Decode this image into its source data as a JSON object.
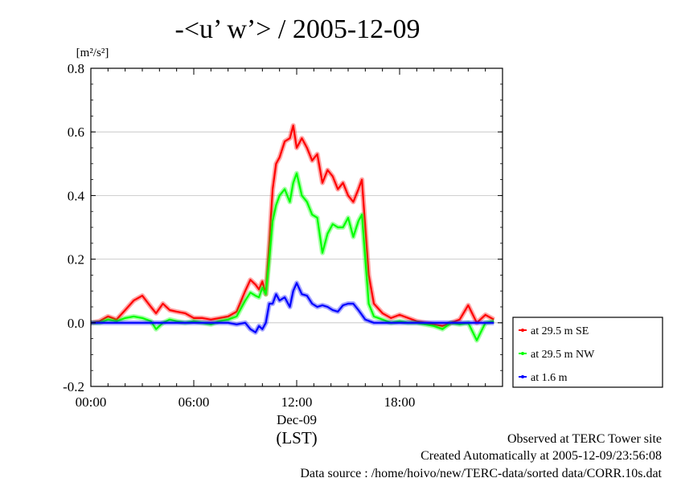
{
  "chart_data": {
    "type": "line",
    "title": "-<u’ w’> / 2005-12-09",
    "ylabel_unit": "[m²/s²]",
    "ylim": [
      -0.2,
      0.8
    ],
    "yticks": [
      -0.2,
      0.0,
      0.2,
      0.4,
      0.6,
      0.8
    ],
    "ytick_labels": [
      "-0.2",
      "0.0",
      "0.2",
      "0.4",
      "0.6",
      "0.8"
    ],
    "xlim": [
      0,
      24
    ],
    "xticks": [
      0,
      6,
      12,
      18
    ],
    "xtick_labels": [
      "00:00",
      "06:00",
      "12:00",
      "18:00"
    ],
    "date_label": "Dec-09",
    "xlabel": "(LST)",
    "grid": "horizontal",
    "legend": "right",
    "series": [
      {
        "name": "at 29.5 m SE",
        "color": "#ff0000",
        "x": [
          0,
          0.5,
          1,
          1.5,
          2,
          2.5,
          3,
          3.5,
          3.8,
          4.2,
          4.6,
          5,
          5.5,
          6,
          6.5,
          7,
          7.5,
          8,
          8.5,
          9,
          9.3,
          9.6,
          9.8,
          10,
          10.2,
          10.4,
          10.6,
          10.8,
          11,
          11.3,
          11.6,
          11.8,
          12,
          12.3,
          12.6,
          12.9,
          13.2,
          13.5,
          13.8,
          14.1,
          14.4,
          14.7,
          15,
          15.3,
          15.6,
          15.8,
          16,
          16.2,
          16.5,
          17,
          17.5,
          18,
          18.5,
          19,
          19.5,
          20,
          20.5,
          21,
          21.5,
          22,
          22.5,
          23,
          23.5
        ],
        "y": [
          0.0,
          0.005,
          0.02,
          0.01,
          0.04,
          0.07,
          0.085,
          0.05,
          0.03,
          0.06,
          0.04,
          0.035,
          0.03,
          0.015,
          0.015,
          0.01,
          0.015,
          0.02,
          0.035,
          0.1,
          0.135,
          0.12,
          0.105,
          0.13,
          0.09,
          0.25,
          0.42,
          0.5,
          0.52,
          0.57,
          0.58,
          0.62,
          0.55,
          0.58,
          0.55,
          0.51,
          0.53,
          0.44,
          0.48,
          0.46,
          0.42,
          0.44,
          0.4,
          0.38,
          0.42,
          0.45,
          0.3,
          0.15,
          0.06,
          0.03,
          0.015,
          0.025,
          0.015,
          0.005,
          0.0,
          -0.005,
          -0.01,
          0.0,
          0.01,
          0.055,
          0.0,
          0.025,
          0.01
        ]
      },
      {
        "name": "at 29.5 m NW",
        "color": "#00ff00",
        "x": [
          0,
          0.5,
          1,
          1.5,
          2,
          2.5,
          3,
          3.5,
          3.8,
          4.2,
          4.6,
          5,
          5.5,
          6,
          6.5,
          7,
          7.5,
          8,
          8.5,
          9,
          9.3,
          9.6,
          9.8,
          10,
          10.2,
          10.4,
          10.6,
          10.8,
          11,
          11.3,
          11.6,
          11.8,
          12,
          12.3,
          12.6,
          12.9,
          13.2,
          13.5,
          13.8,
          14.1,
          14.4,
          14.7,
          15,
          15.3,
          15.6,
          15.8,
          16,
          16.2,
          16.5,
          17,
          17.5,
          18,
          18.5,
          19,
          19.5,
          20,
          20.5,
          21,
          21.5,
          22,
          22.5,
          23,
          23.5
        ],
        "y": [
          0.0,
          0.0,
          0.01,
          0.005,
          0.015,
          0.02,
          0.015,
          0.005,
          -0.02,
          0.0,
          0.01,
          0.005,
          0.0,
          0.005,
          0.0,
          -0.005,
          0.005,
          0.01,
          0.02,
          0.07,
          0.095,
          0.085,
          0.08,
          0.11,
          0.09,
          0.2,
          0.32,
          0.37,
          0.4,
          0.42,
          0.38,
          0.44,
          0.47,
          0.4,
          0.38,
          0.34,
          0.33,
          0.22,
          0.28,
          0.31,
          0.3,
          0.3,
          0.33,
          0.27,
          0.32,
          0.34,
          0.2,
          0.06,
          0.02,
          0.01,
          0.0,
          0.005,
          0.0,
          0.0,
          -0.005,
          -0.01,
          -0.02,
          0.0,
          -0.005,
          0.0,
          -0.055,
          0.0,
          0.005
        ]
      },
      {
        "name": "at 1.6 m",
        "color": "#0000ff",
        "x": [
          0,
          1,
          2,
          3,
          4,
          5,
          6,
          7,
          8,
          8.5,
          9,
          9.3,
          9.6,
          9.8,
          10,
          10.2,
          10.4,
          10.6,
          10.8,
          11,
          11.3,
          11.6,
          11.8,
          12,
          12.3,
          12.6,
          12.9,
          13.2,
          13.5,
          13.8,
          14.1,
          14.4,
          14.7,
          15,
          15.3,
          15.6,
          16,
          16.5,
          17,
          18,
          19,
          20,
          21,
          22,
          23,
          23.5
        ],
        "y": [
          0.0,
          0.0,
          0.0,
          0.0,
          0.0,
          0.0,
          0.0,
          0.0,
          0.0,
          -0.005,
          0.0,
          -0.02,
          -0.03,
          -0.01,
          -0.02,
          0.0,
          0.06,
          0.06,
          0.09,
          0.07,
          0.08,
          0.05,
          0.1,
          0.125,
          0.09,
          0.085,
          0.06,
          0.05,
          0.055,
          0.05,
          0.04,
          0.035,
          0.055,
          0.06,
          0.06,
          0.04,
          0.01,
          0.0,
          0.0,
          0.0,
          0.0,
          0.0,
          0.0,
          0.0,
          0.0,
          0.0
        ]
      }
    ]
  },
  "footer": {
    "line1": "Observed at TERC Tower site",
    "line2": "Created Automatically at 2005-12-09/23:56:08",
    "line3": "Data source : /home/hoivo/new/TERC-data/sorted  data/CORR.10s.dat"
  }
}
